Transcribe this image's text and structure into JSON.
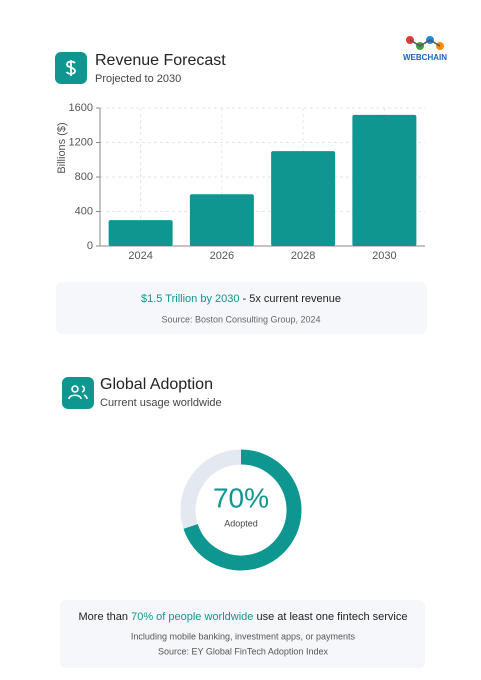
{
  "logo": "WEBCHAIN",
  "chart_data": [
    {
      "type": "bar",
      "title": "Revenue Forecast",
      "subtitle": "Projected to 2030",
      "y_label": "Billions ($)",
      "categories": [
        "2024",
        "2026",
        "2028",
        "2030"
      ],
      "values": [
        300,
        600,
        1100,
        1520
      ],
      "color": "#0e9690",
      "ylim": [
        0,
        1600
      ],
      "yticks": [
        0,
        400,
        800,
        1200,
        1600
      ],
      "grid": true,
      "note": {
        "highlight": "$1.5 Trillion by 2030",
        "text": " - 5x current revenue",
        "source": "Source: Boston Consulting Group, 2024"
      }
    },
    {
      "type": "donut",
      "title": "Global Adoption",
      "subtitle": "Current usage worldwide",
      "categories": [
        "Adopted",
        null
      ],
      "values": [
        70,
        30
      ],
      "value_labels": [
        "70%",
        null
      ],
      "colors": [
        "#0e9690",
        "#e4e8f0"
      ],
      "note": {
        "prefix": "More than ",
        "highlight": "70% of people worldwide",
        "text": " use at least one fintech service",
        "detail": "Including mobile banking, investment apps, or payments",
        "source": "Source: EY Global FinTech Adoption Index"
      }
    }
  ]
}
